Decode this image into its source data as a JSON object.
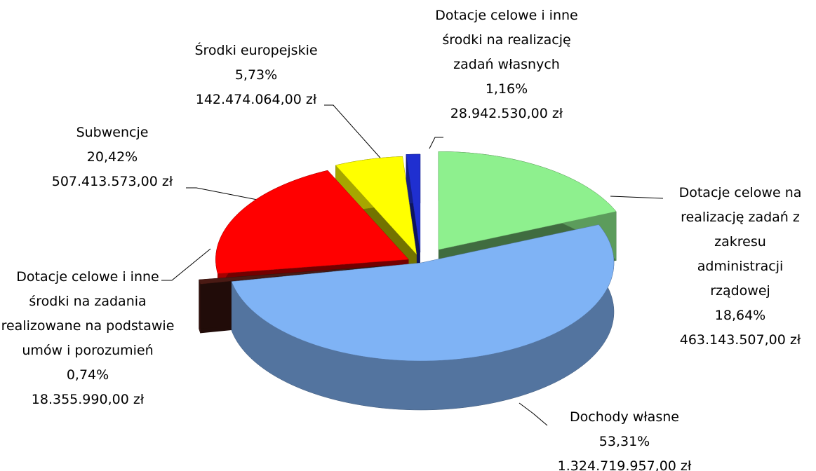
{
  "chart_data": {
    "type": "pie",
    "categories": [
      "Dotacje celowe na realizację zadań z zakresu administracji rządowej",
      "Dochody własne",
      "Dotacje celowe i inne środki na zadania realizowane na podstawie umów i porozumień",
      "Subwencje",
      "Środki europejskie",
      "Dotacje celowe i inne środki na realizację zadań własnych"
    ],
    "values": [
      18.64,
      53.31,
      0.74,
      20.42,
      5.73,
      1.16
    ],
    "value_labels": [
      "18,64%",
      "53,31%",
      "0,74%",
      "20,42%",
      "5,73%",
      "1,16%"
    ],
    "amounts": [
      463143507,
      1324719957,
      18355990,
      507413573,
      142474064,
      28942530
    ],
    "amount_labels": [
      "463.143.507,00 zł",
      "1.324.719.957,00 zł",
      "18.355.990,00 zł",
      "507.413.573,00 zł",
      "142.474.064,00 zł",
      "28.942.530,00 zł"
    ],
    "colors": [
      "#8ef08e",
      "#7fb3f5",
      "#4a1a14",
      "#ff0000",
      "#ffff00",
      "#1f2fd0"
    ]
  }
}
